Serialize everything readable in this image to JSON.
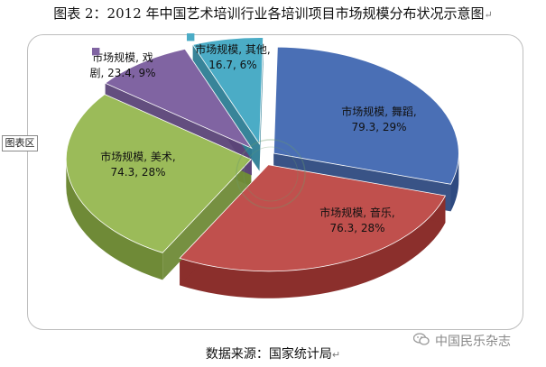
{
  "page": {
    "title": "图表 2：2012 年中国艺术培训行业各培训项目市场规模分布状况示意图",
    "title_mark": "↵",
    "side_label": "图表区",
    "source": "数据来源：国家统计局",
    "source_mark": "↵",
    "brand": "中国民乐杂志",
    "brand_icon": "wechat-icon"
  },
  "chart_data": {
    "type": "pie",
    "style": "3d-exploded",
    "slices": [
      {
        "label_lines": [
          "市场规模, 舞蹈,",
          "79.3, 29%"
        ],
        "value": 79.3,
        "percent": 29,
        "color": "#4a6fb5",
        "side": "#2e4a80"
      },
      {
        "label_lines": [
          "市场规模, 音乐,",
          "76.3, 28%"
        ],
        "value": 76.3,
        "percent": 28,
        "color": "#c0504d",
        "side": "#8b2f2c"
      },
      {
        "label_lines": [
          "市场规模, 美术,",
          "74.3, 28%"
        ],
        "value": 74.3,
        "percent": 28,
        "color": "#9bbb59",
        "side": "#6f8a37"
      },
      {
        "label_lines": [
          "市场规模, 戏",
          "剧, 23.4, 9%"
        ],
        "value": 23.4,
        "percent": 9,
        "color": "#8064a2",
        "side": "#5b4578"
      },
      {
        "label_lines": [
          "市场规模, 其他,",
          "16.7, 6%"
        ],
        "value": 16.7,
        "percent": 6,
        "color": "#4bacc6",
        "side": "#2d7d93"
      }
    ],
    "legend_markers": [
      "■",
      "■"
    ]
  }
}
